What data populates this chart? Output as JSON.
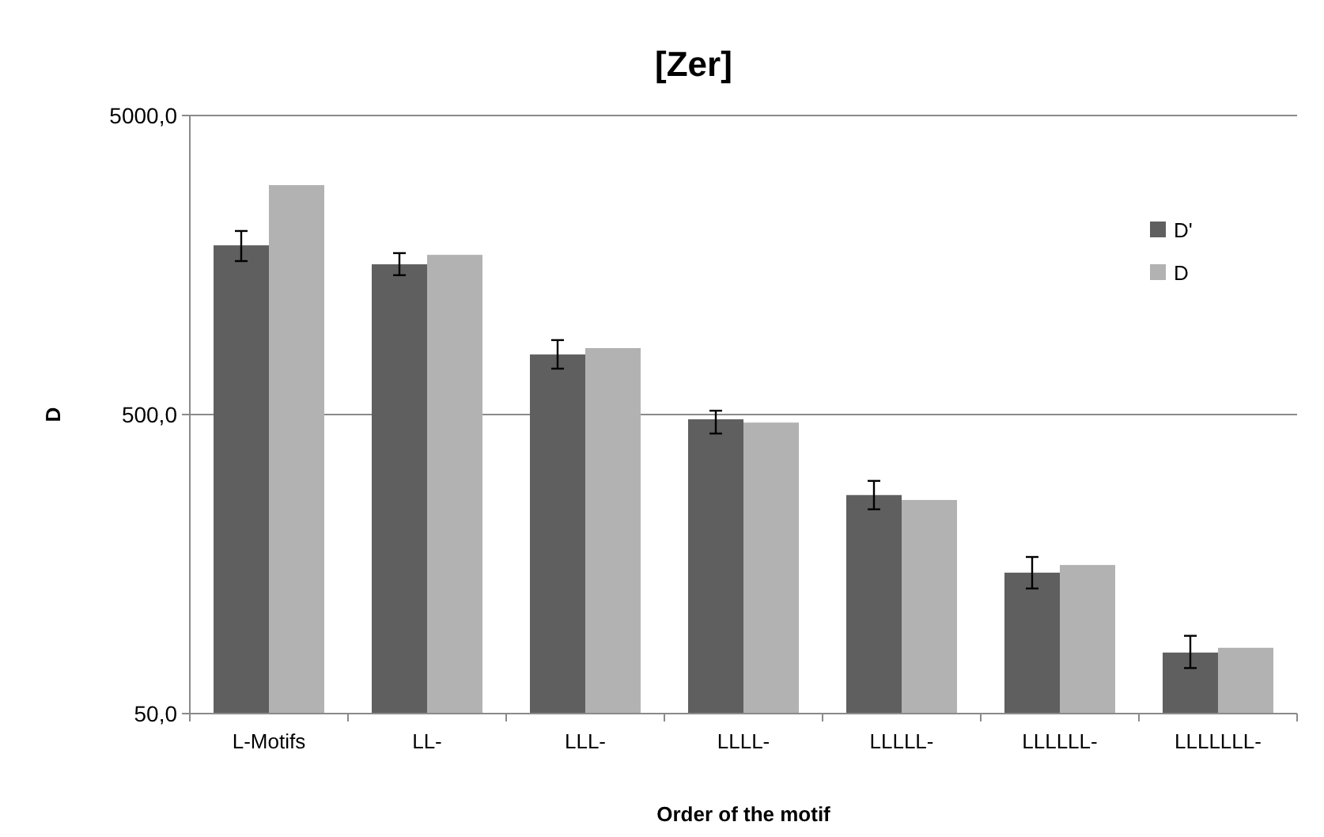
{
  "chart_data": {
    "type": "bar",
    "title": "[Zer]",
    "xlabel": "Order of the motif",
    "ylabel": "D",
    "categories": [
      "L-Motifs",
      "LL-",
      "LLL-",
      "LLLL-",
      "LLLLL-",
      "LLLLLL-",
      "LLLLLLL-"
    ],
    "series": [
      {
        "name": "D'",
        "color": "#5f5f5f",
        "values": [
          1840,
          1590,
          794,
          482,
          269,
          148,
          80
        ],
        "errors": [
          [
            1630,
            2055
          ],
          [
            1462,
            1733
          ],
          [
            712,
            887
          ],
          [
            432,
            515
          ],
          [
            241,
            300
          ],
          [
            131,
            167
          ],
          [
            71,
            91
          ]
        ]
      },
      {
        "name": "D",
        "color": "#b2b2b2",
        "values": [
          2925,
          1710,
          834,
          470,
          259,
          157,
          83
        ]
      }
    ],
    "log": true,
    "ylim": [
      50,
      5000
    ],
    "yticks": [
      {
        "value": 50,
        "label": "50,0"
      },
      {
        "value": 500,
        "label": "500,0"
      },
      {
        "value": 5000,
        "label": "5000,0"
      }
    ],
    "grid": "y",
    "legend": "top right"
  }
}
